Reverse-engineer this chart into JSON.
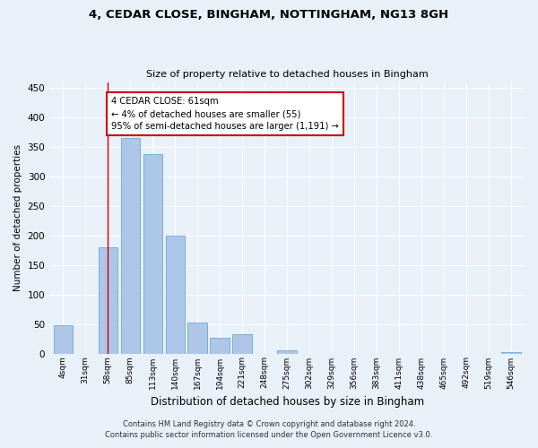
{
  "title_line1": "4, CEDAR CLOSE, BINGHAM, NOTTINGHAM, NG13 8GH",
  "title_line2": "Size of property relative to detached houses in Bingham",
  "xlabel": "Distribution of detached houses by size in Bingham",
  "ylabel": "Number of detached properties",
  "bar_color": "#aec6e8",
  "bar_edge_color": "#6aaad4",
  "categories": [
    "4sqm",
    "31sqm",
    "58sqm",
    "85sqm",
    "113sqm",
    "140sqm",
    "167sqm",
    "194sqm",
    "221sqm",
    "248sqm",
    "275sqm",
    "302sqm",
    "329sqm",
    "356sqm",
    "383sqm",
    "411sqm",
    "438sqm",
    "465sqm",
    "492sqm",
    "519sqm",
    "546sqm"
  ],
  "values": [
    48,
    0,
    180,
    365,
    338,
    199,
    53,
    27,
    32,
    0,
    6,
    0,
    0,
    0,
    0,
    0,
    0,
    0,
    0,
    0,
    2
  ],
  "ylim": [
    0,
    460
  ],
  "yticks": [
    0,
    50,
    100,
    150,
    200,
    250,
    300,
    350,
    400,
    450
  ],
  "property_line_x": 2.0,
  "annotation_text": "4 CEDAR CLOSE: 61sqm\n← 4% of detached houses are smaller (55)\n95% of semi-detached houses are larger (1,191) →",
  "annotation_box_color": "#ffffff",
  "annotation_box_edge": "#cc0000",
  "property_line_color": "#cc0000",
  "footer_line1": "Contains HM Land Registry data © Crown copyright and database right 2024.",
  "footer_line2": "Contains public sector information licensed under the Open Government Licence v3.0.",
  "bg_color": "#e8f0f8",
  "plot_bg_color": "#e8f0f8"
}
